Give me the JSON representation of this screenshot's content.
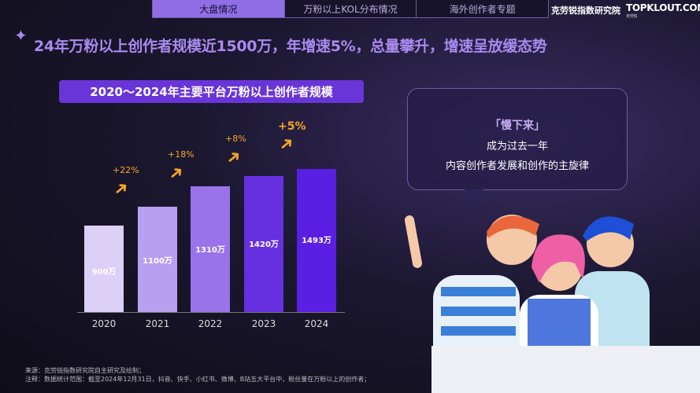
{
  "tabs": [
    {
      "label": "大盘情况",
      "active": true
    },
    {
      "label": "万粉以上KOL分布情况"
    },
    {
      "label": "海外创作者专题"
    }
  ],
  "brand": "克劳锐指数研究院",
  "logo": "TOPKLOUT.COM",
  "title": "24年万粉以上创作者规模近1500万，年增速5%，总量攀升，增速呈放缓态势",
  "chart_data": {
    "type": "bar",
    "title": "2020～2024年主要平台万粉以上创作者规模",
    "categories": [
      "2020",
      "2021",
      "2022",
      "2023",
      "2024"
    ],
    "values": [
      900,
      1100,
      1310,
      1420,
      1493
    ],
    "data_labels": [
      "900万",
      "1100万",
      "1310万",
      "1420万",
      "1493万"
    ],
    "growth": [
      "+22%",
      "+18%",
      "+8%",
      "+5%"
    ],
    "colors": [
      "#ddd0f7",
      "#b99ff0",
      "#9a72ea",
      "#6630e0",
      "#5a1fe3"
    ],
    "accent": "#f5a623"
  },
  "callout": {
    "heading": "「慢下来」",
    "line1": "成为过去一年",
    "line2": "内容创作者发展和创作的主旋律"
  },
  "notes": {
    "source": "来源：克劳锐指数研究院自主研究及绘制；",
    "note": "注释：数据统计范围：截至2024年12月31日，抖音、快手、小红书、微博、B站五大平台中，粉丝量在万粉以上的创作者；"
  }
}
